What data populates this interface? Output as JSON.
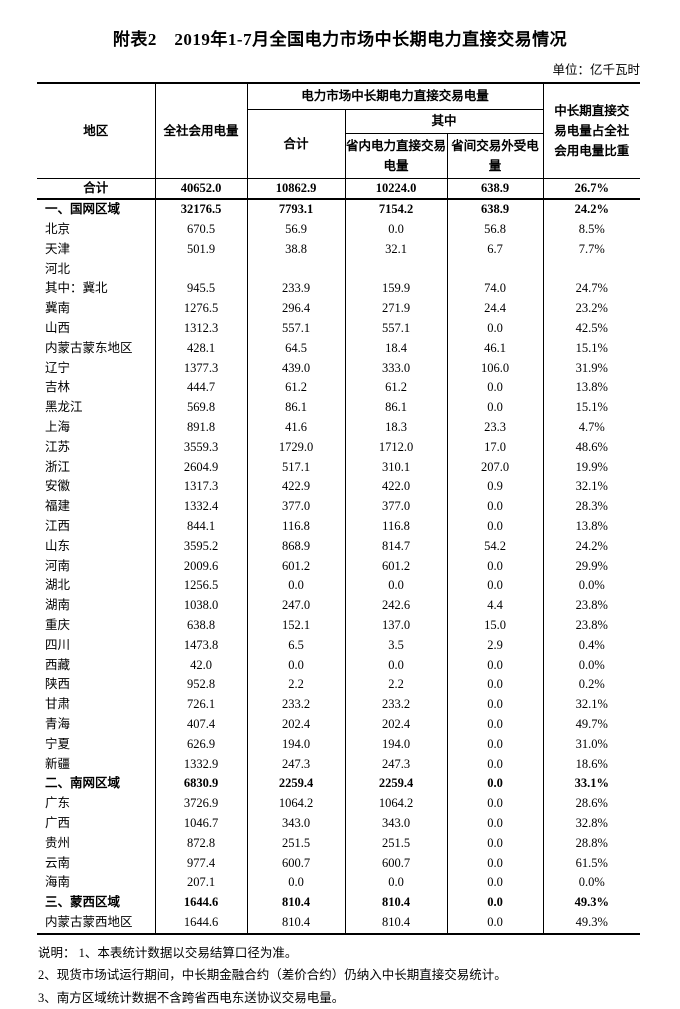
{
  "page": {
    "title": "附表2　2019年1-7月全国电力市场中长期电力直接交易情况",
    "unit_label": "单位：亿千瓦时"
  },
  "table": {
    "headers": {
      "region": "地区",
      "total_consumption": "全社会用电量",
      "trade_group": "电力市场中长期电力直接交易电量",
      "trade_total": "合计",
      "among_which": "其中",
      "intra_provincial": "省内电力直接交易电量",
      "inter_provincial": "省间交易外受电量",
      "share": "中长期直接交易电量占全社会用电量比重"
    },
    "rows": [
      {
        "region": "合计",
        "bold": true,
        "center": true,
        "divider": true,
        "values": [
          "40652.0",
          "10862.9",
          "10224.0",
          "638.9",
          "26.7%"
        ]
      },
      {
        "region": "一、国网区域",
        "bold": true,
        "values": [
          "32176.5",
          "7793.1",
          "7154.2",
          "638.9",
          "24.2%"
        ]
      },
      {
        "region": "北京",
        "values": [
          "670.5",
          "56.9",
          "0.0",
          "56.8",
          "8.5%"
        ]
      },
      {
        "region": "天津",
        "values": [
          "501.9",
          "38.8",
          "32.1",
          "6.7",
          "7.7%"
        ]
      },
      {
        "region": "河北",
        "values": [
          "",
          "",
          "",
          "",
          ""
        ]
      },
      {
        "region": "其中：冀北",
        "values": [
          "945.5",
          "233.9",
          "159.9",
          "74.0",
          "24.7%"
        ]
      },
      {
        "region": "冀南",
        "values": [
          "1276.5",
          "296.4",
          "271.9",
          "24.4",
          "23.2%"
        ]
      },
      {
        "region": "山西",
        "values": [
          "1312.3",
          "557.1",
          "557.1",
          "0.0",
          "42.5%"
        ]
      },
      {
        "region": "内蒙古蒙东地区",
        "values": [
          "428.1",
          "64.5",
          "18.4",
          "46.1",
          "15.1%"
        ]
      },
      {
        "region": "辽宁",
        "values": [
          "1377.3",
          "439.0",
          "333.0",
          "106.0",
          "31.9%"
        ]
      },
      {
        "region": "吉林",
        "values": [
          "444.7",
          "61.2",
          "61.2",
          "0.0",
          "13.8%"
        ]
      },
      {
        "region": "黑龙江",
        "values": [
          "569.8",
          "86.1",
          "86.1",
          "0.0",
          "15.1%"
        ]
      },
      {
        "region": "上海",
        "values": [
          "891.8",
          "41.6",
          "18.3",
          "23.3",
          "4.7%"
        ]
      },
      {
        "region": "江苏",
        "values": [
          "3559.3",
          "1729.0",
          "1712.0",
          "17.0",
          "48.6%"
        ]
      },
      {
        "region": "浙江",
        "values": [
          "2604.9",
          "517.1",
          "310.1",
          "207.0",
          "19.9%"
        ]
      },
      {
        "region": "安徽",
        "values": [
          "1317.3",
          "422.9",
          "422.0",
          "0.9",
          "32.1%"
        ]
      },
      {
        "region": "福建",
        "values": [
          "1332.4",
          "377.0",
          "377.0",
          "0.0",
          "28.3%"
        ]
      },
      {
        "region": "江西",
        "values": [
          "844.1",
          "116.8",
          "116.8",
          "0.0",
          "13.8%"
        ]
      },
      {
        "region": "山东",
        "values": [
          "3595.2",
          "868.9",
          "814.7",
          "54.2",
          "24.2%"
        ]
      },
      {
        "region": "河南",
        "values": [
          "2009.6",
          "601.2",
          "601.2",
          "0.0",
          "29.9%"
        ]
      },
      {
        "region": "湖北",
        "values": [
          "1256.5",
          "0.0",
          "0.0",
          "0.0",
          "0.0%"
        ]
      },
      {
        "region": "湖南",
        "values": [
          "1038.0",
          "247.0",
          "242.6",
          "4.4",
          "23.8%"
        ]
      },
      {
        "region": "重庆",
        "values": [
          "638.8",
          "152.1",
          "137.0",
          "15.0",
          "23.8%"
        ]
      },
      {
        "region": "四川",
        "values": [
          "1473.8",
          "6.5",
          "3.5",
          "2.9",
          "0.4%"
        ]
      },
      {
        "region": "西藏",
        "values": [
          "42.0",
          "0.0",
          "0.0",
          "0.0",
          "0.0%"
        ]
      },
      {
        "region": "陕西",
        "values": [
          "952.8",
          "2.2",
          "2.2",
          "0.0",
          "0.2%"
        ]
      },
      {
        "region": "甘肃",
        "values": [
          "726.1",
          "233.2",
          "233.2",
          "0.0",
          "32.1%"
        ]
      },
      {
        "region": "青海",
        "values": [
          "407.4",
          "202.4",
          "202.4",
          "0.0",
          "49.7%"
        ]
      },
      {
        "region": "宁夏",
        "values": [
          "626.9",
          "194.0",
          "194.0",
          "0.0",
          "31.0%"
        ]
      },
      {
        "region": "新疆",
        "values": [
          "1332.9",
          "247.3",
          "247.3",
          "0.0",
          "18.6%"
        ]
      },
      {
        "region": "二、南网区域",
        "bold": true,
        "values": [
          "6830.9",
          "2259.4",
          "2259.4",
          "0.0",
          "33.1%"
        ]
      },
      {
        "region": "广东",
        "values": [
          "3726.9",
          "1064.2",
          "1064.2",
          "0.0",
          "28.6%"
        ]
      },
      {
        "region": "广西",
        "values": [
          "1046.7",
          "343.0",
          "343.0",
          "0.0",
          "32.8%"
        ]
      },
      {
        "region": "贵州",
        "values": [
          "872.8",
          "251.5",
          "251.5",
          "0.0",
          "28.8%"
        ]
      },
      {
        "region": "云南",
        "values": [
          "977.4",
          "600.7",
          "600.7",
          "0.0",
          "61.5%"
        ]
      },
      {
        "region": "海南",
        "values": [
          "207.1",
          "0.0",
          "0.0",
          "0.0",
          "0.0%"
        ]
      },
      {
        "region": "三、蒙西区域",
        "bold": true,
        "values": [
          "1644.6",
          "810.4",
          "810.4",
          "0.0",
          "49.3%"
        ]
      },
      {
        "region": "内蒙古蒙西地区",
        "values": [
          "1644.6",
          "810.4",
          "810.4",
          "0.0",
          "49.3%"
        ]
      }
    ]
  },
  "notes": [
    "说明：  1、本表统计数据以交易结算口径为准。",
    "2、现货市场试运行期间，中长期金融合约（差价合约）仍纳入中长期直接交易统计。",
    "3、南方区域统计数据不含跨省西电东送协议交易电量。"
  ]
}
